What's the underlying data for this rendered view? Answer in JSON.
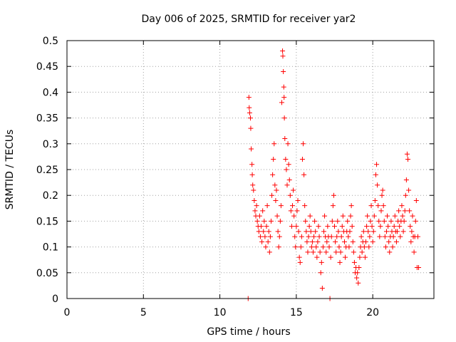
{
  "chart_data": {
    "type": "scatter",
    "title": "Day 006 of 2025, SRMTID for receiver yar2",
    "xlabel": "GPS time / hours",
    "ylabel": "SRMTID / TECUs",
    "xlim": [
      0,
      24
    ],
    "ylim": [
      0,
      0.5
    ],
    "xticks": [
      0,
      5,
      10,
      15,
      20
    ],
    "yticks": [
      0,
      0.05,
      0.1,
      0.15,
      0.2,
      0.25,
      0.3,
      0.35,
      0.4,
      0.45,
      0.5
    ],
    "xtick_labels": [
      "0",
      "5",
      "10",
      "15",
      "20"
    ],
    "ytick_labels": [
      "0",
      "0.05",
      "0.1",
      "0.15",
      "0.2",
      "0.25",
      "0.3",
      "0.35",
      "0.4",
      "0.45",
      "0.5"
    ],
    "grid": true,
    "marker": "+",
    "series": [
      {
        "name": "SRMTID",
        "color": "#ff0000",
        "points": [
          [
            11.85,
            0.0
          ],
          [
            11.9,
            0.39
          ],
          [
            11.92,
            0.37
          ],
          [
            11.95,
            0.36
          ],
          [
            12.0,
            0.35
          ],
          [
            12.02,
            0.33
          ],
          [
            12.05,
            0.29
          ],
          [
            12.1,
            0.26
          ],
          [
            12.12,
            0.24
          ],
          [
            12.15,
            0.22
          ],
          [
            12.2,
            0.21
          ],
          [
            12.25,
            0.19
          ],
          [
            12.3,
            0.17
          ],
          [
            12.35,
            0.16
          ],
          [
            12.4,
            0.18
          ],
          [
            12.45,
            0.15
          ],
          [
            12.5,
            0.14
          ],
          [
            12.55,
            0.13
          ],
          [
            12.6,
            0.16
          ],
          [
            12.65,
            0.12
          ],
          [
            12.7,
            0.14
          ],
          [
            12.75,
            0.11
          ],
          [
            12.8,
            0.17
          ],
          [
            12.85,
            0.13
          ],
          [
            12.9,
            0.15
          ],
          [
            12.95,
            0.12
          ],
          [
            13.0,
            0.1
          ],
          [
            13.05,
            0.14
          ],
          [
            13.1,
            0.18
          ],
          [
            13.15,
            0.11
          ],
          [
            13.2,
            0.13
          ],
          [
            13.25,
            0.09
          ],
          [
            13.3,
            0.12
          ],
          [
            13.35,
            0.15
          ],
          [
            13.4,
            0.2
          ],
          [
            13.45,
            0.24
          ],
          [
            13.5,
            0.27
          ],
          [
            13.55,
            0.3
          ],
          [
            13.6,
            0.22
          ],
          [
            13.65,
            0.19
          ],
          [
            13.7,
            0.21
          ],
          [
            13.75,
            0.16
          ],
          [
            13.8,
            0.13
          ],
          [
            13.85,
            0.1
          ],
          [
            13.9,
            0.12
          ],
          [
            13.95,
            0.15
          ],
          [
            14.0,
            0.18
          ],
          [
            14.05,
            0.38
          ],
          [
            14.1,
            0.48
          ],
          [
            14.12,
            0.47
          ],
          [
            14.15,
            0.44
          ],
          [
            14.18,
            0.41
          ],
          [
            14.2,
            0.39
          ],
          [
            14.22,
            0.35
          ],
          [
            14.25,
            0.31
          ],
          [
            14.3,
            0.27
          ],
          [
            14.35,
            0.25
          ],
          [
            14.4,
            0.22
          ],
          [
            14.45,
            0.3
          ],
          [
            14.5,
            0.26
          ],
          [
            14.55,
            0.23
          ],
          [
            14.6,
            0.2
          ],
          [
            14.65,
            0.17
          ],
          [
            14.7,
            0.14
          ],
          [
            14.75,
            0.18
          ],
          [
            14.8,
            0.21
          ],
          [
            14.85,
            0.16
          ],
          [
            14.9,
            0.12
          ],
          [
            14.95,
            0.1
          ],
          [
            15.0,
            0.14
          ],
          [
            15.05,
            0.17
          ],
          [
            15.1,
            0.19
          ],
          [
            15.15,
            0.13
          ],
          [
            15.2,
            0.08
          ],
          [
            15.25,
            0.07
          ],
          [
            15.3,
            0.1
          ],
          [
            15.35,
            0.12
          ],
          [
            15.4,
            0.27
          ],
          [
            15.45,
            0.3
          ],
          [
            15.5,
            0.24
          ],
          [
            15.55,
            0.18
          ],
          [
            15.6,
            0.15
          ],
          [
            15.65,
            0.13
          ],
          [
            15.7,
            0.11
          ],
          [
            15.75,
            0.09
          ],
          [
            15.8,
            0.12
          ],
          [
            15.85,
            0.14
          ],
          [
            15.9,
            0.16
          ],
          [
            15.95,
            0.13
          ],
          [
            16.0,
            0.1
          ],
          [
            16.05,
            0.11
          ],
          [
            16.1,
            0.09
          ],
          [
            16.15,
            0.12
          ],
          [
            16.2,
            0.15
          ],
          [
            16.25,
            0.13
          ],
          [
            16.3,
            0.1
          ],
          [
            16.35,
            0.08
          ],
          [
            16.4,
            0.11
          ],
          [
            16.45,
            0.14
          ],
          [
            16.5,
            0.12
          ],
          [
            16.55,
            0.09
          ],
          [
            16.6,
            0.05
          ],
          [
            16.65,
            0.07
          ],
          [
            16.7,
            0.02
          ],
          [
            16.75,
            0.1
          ],
          [
            16.8,
            0.13
          ],
          [
            16.85,
            0.16
          ],
          [
            16.9,
            0.12
          ],
          [
            16.95,
            0.09
          ],
          [
            17.0,
            0.11
          ],
          [
            17.05,
            0.14
          ],
          [
            17.1,
            0.12
          ],
          [
            17.15,
            0.1
          ],
          [
            17.2,
            0.0
          ],
          [
            17.25,
            0.08
          ],
          [
            17.3,
            0.12
          ],
          [
            17.35,
            0.15
          ],
          [
            17.4,
            0.18
          ],
          [
            17.45,
            0.2
          ],
          [
            17.5,
            0.14
          ],
          [
            17.55,
            0.11
          ],
          [
            17.6,
            0.09
          ],
          [
            17.65,
            0.12
          ],
          [
            17.7,
            0.15
          ],
          [
            17.75,
            0.13
          ],
          [
            17.8,
            0.1
          ],
          [
            17.85,
            0.07
          ],
          [
            17.9,
            0.09
          ],
          [
            17.95,
            0.12
          ],
          [
            18.0,
            0.14
          ],
          [
            18.05,
            0.16
          ],
          [
            18.1,
            0.13
          ],
          [
            18.15,
            0.11
          ],
          [
            18.2,
            0.08
          ],
          [
            18.25,
            0.1
          ],
          [
            18.3,
            0.13
          ],
          [
            18.35,
            0.15
          ],
          [
            18.4,
            0.12
          ],
          [
            18.45,
            0.1
          ],
          [
            18.5,
            0.13
          ],
          [
            18.55,
            0.16
          ],
          [
            18.6,
            0.18
          ],
          [
            18.65,
            0.14
          ],
          [
            18.7,
            0.11
          ],
          [
            18.75,
            0.09
          ],
          [
            18.8,
            0.07
          ],
          [
            18.85,
            0.05
          ],
          [
            18.9,
            0.06
          ],
          [
            18.95,
            0.04
          ],
          [
            19.0,
            0.05
          ],
          [
            19.05,
            0.03
          ],
          [
            19.1,
            0.06
          ],
          [
            19.15,
            0.08
          ],
          [
            19.2,
            0.1
          ],
          [
            19.25,
            0.12
          ],
          [
            19.3,
            0.09
          ],
          [
            19.35,
            0.11
          ],
          [
            19.4,
            0.13
          ],
          [
            19.45,
            0.1
          ],
          [
            19.5,
            0.08
          ],
          [
            19.55,
            0.11
          ],
          [
            19.6,
            0.14
          ],
          [
            19.65,
            0.16
          ],
          [
            19.7,
            0.13
          ],
          [
            19.75,
            0.1
          ],
          [
            19.8,
            0.12
          ],
          [
            19.85,
            0.15
          ],
          [
            19.9,
            0.18
          ],
          [
            19.95,
            0.14
          ],
          [
            20.0,
            0.11
          ],
          [
            20.05,
            0.13
          ],
          [
            20.1,
            0.16
          ],
          [
            20.15,
            0.19
          ],
          [
            20.2,
            0.24
          ],
          [
            20.25,
            0.26
          ],
          [
            20.3,
            0.22
          ],
          [
            20.35,
            0.18
          ],
          [
            20.4,
            0.15
          ],
          [
            20.45,
            0.12
          ],
          [
            20.5,
            0.14
          ],
          [
            20.55,
            0.17
          ],
          [
            20.6,
            0.2
          ],
          [
            20.65,
            0.21
          ],
          [
            20.7,
            0.18
          ],
          [
            20.75,
            0.15
          ],
          [
            20.8,
            0.12
          ],
          [
            20.85,
            0.1
          ],
          [
            20.9,
            0.13
          ],
          [
            20.95,
            0.16
          ],
          [
            21.0,
            0.14
          ],
          [
            21.05,
            0.11
          ],
          [
            21.1,
            0.09
          ],
          [
            21.15,
            0.12
          ],
          [
            21.2,
            0.15
          ],
          [
            21.25,
            0.13
          ],
          [
            21.3,
            0.1
          ],
          [
            21.35,
            0.12
          ],
          [
            21.4,
            0.14
          ],
          [
            21.45,
            0.16
          ],
          [
            21.5,
            0.13
          ],
          [
            21.55,
            0.11
          ],
          [
            21.6,
            0.13
          ],
          [
            21.65,
            0.15
          ],
          [
            21.7,
            0.17
          ],
          [
            21.75,
            0.14
          ],
          [
            21.8,
            0.12
          ],
          [
            21.85,
            0.15
          ],
          [
            21.9,
            0.18
          ],
          [
            21.95,
            0.16
          ],
          [
            22.0,
            0.13
          ],
          [
            22.05,
            0.15
          ],
          [
            22.1,
            0.17
          ],
          [
            22.15,
            0.2
          ],
          [
            22.2,
            0.23
          ],
          [
            22.25,
            0.28
          ],
          [
            22.3,
            0.27
          ],
          [
            22.35,
            0.21
          ],
          [
            22.4,
            0.17
          ],
          [
            22.45,
            0.14
          ],
          [
            22.5,
            0.11
          ],
          [
            22.55,
            0.13
          ],
          [
            22.6,
            0.16
          ],
          [
            22.65,
            0.12
          ],
          [
            22.7,
            0.09
          ],
          [
            22.75,
            0.12
          ],
          [
            22.8,
            0.15
          ],
          [
            22.85,
            0.19
          ],
          [
            22.9,
            0.06
          ],
          [
            22.95,
            0.12
          ],
          [
            23.0,
            0.06
          ]
        ]
      }
    ]
  }
}
